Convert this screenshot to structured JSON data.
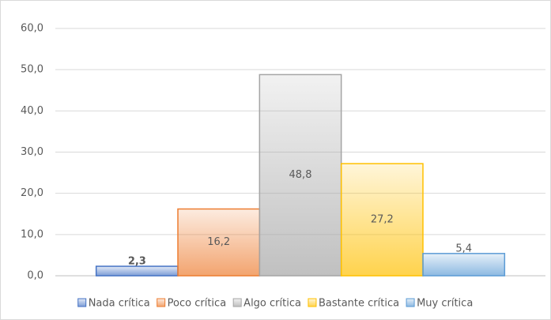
{
  "chart_data": {
    "type": "bar",
    "series": [
      {
        "name": "Nada crítica",
        "color": "#4472c4",
        "values": [
          2.3
        ],
        "value_labels": [
          "2,3"
        ]
      },
      {
        "name": "Poco crítica",
        "color": "#ed7d31",
        "values": [
          16.2
        ],
        "value_labels": [
          "16,2"
        ]
      },
      {
        "name": "Algo crítica",
        "color": "#a5a5a5",
        "values": [
          48.8
        ],
        "value_labels": [
          "48,8"
        ]
      },
      {
        "name": "Bastante crítica",
        "color": "#ffc000",
        "values": [
          27.2
        ],
        "value_labels": [
          "27,2"
        ]
      },
      {
        "name": "Muy crítica",
        "color": "#5b9bd5",
        "values": [
          5.4
        ],
        "value_labels": [
          "5,4"
        ]
      }
    ],
    "ylim": [
      0,
      60
    ],
    "yticks": [
      {
        "value": 0,
        "label": "0,0"
      },
      {
        "value": 10,
        "label": "10,0"
      },
      {
        "value": 20,
        "label": "20,0"
      },
      {
        "value": 30,
        "label": "30,0"
      },
      {
        "value": 40,
        "label": "40,0"
      },
      {
        "value": 50,
        "label": "50,0"
      },
      {
        "value": 60,
        "label": "60,0"
      }
    ],
    "grid": true,
    "legend": "bottom"
  }
}
